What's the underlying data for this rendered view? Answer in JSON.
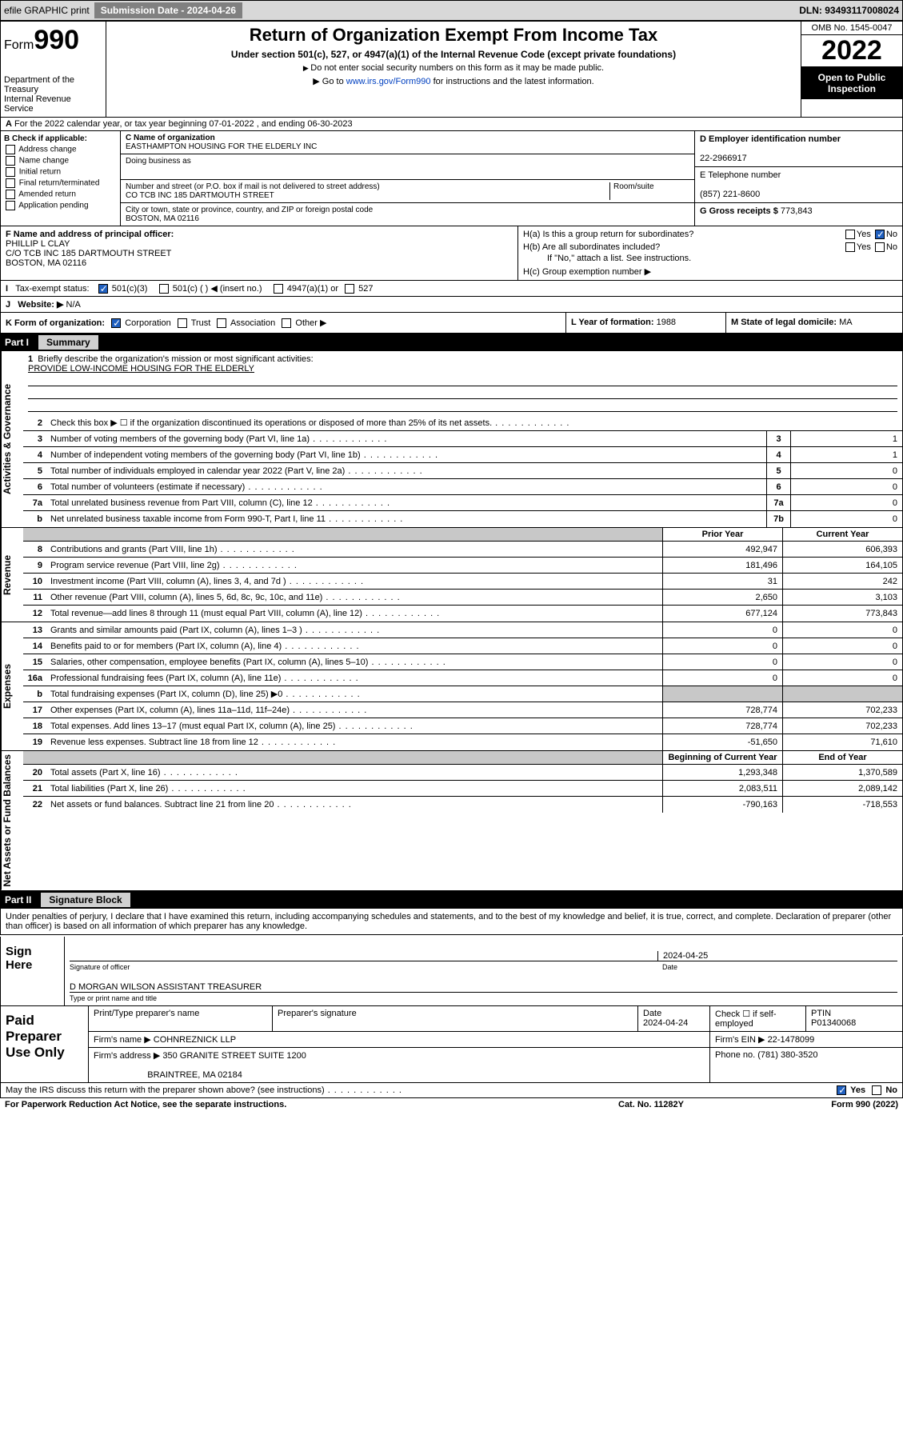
{
  "topbar": {
    "efile": "efile GRAPHIC print",
    "submission_label": "Submission Date - 2024-04-26",
    "dln": "DLN: 93493117008024"
  },
  "header": {
    "form_prefix": "Form",
    "form_num": "990",
    "dept": "Department of the Treasury",
    "irs": "Internal Revenue Service",
    "title": "Return of Organization Exempt From Income Tax",
    "sub1": "Under section 501(c), 527, or 4947(a)(1) of the Internal Revenue Code (except private foundations)",
    "sub2a": "Do not enter social security numbers on this form as it may be made public.",
    "sub2b": "Go to www.irs.gov/Form990 for instructions and the latest information.",
    "link": "www.irs.gov/Form990",
    "omb": "OMB No. 1545-0047",
    "year": "2022",
    "inspect": "Open to Public Inspection"
  },
  "row_a": "For the 2022 calendar year, or tax year beginning 07-01-2022    , and ending 06-30-2023",
  "col_b": {
    "hdr": "B Check if applicable:",
    "items": [
      "Address change",
      "Name change",
      "Initial return",
      "Final return/terminated",
      "Amended return",
      "Application pending"
    ]
  },
  "col_c": {
    "name_lbl": "C Name of organization",
    "name": "EASTHAMPTON HOUSING FOR THE ELDERLY INC",
    "dba_lbl": "Doing business as",
    "addr_lbl": "Number and street (or P.O. box if mail is not delivered to street address)",
    "room_lbl": "Room/suite",
    "addr": "CO TCB INC 185 DARTMOUTH STREET",
    "city_lbl": "City or town, state or province, country, and ZIP or foreign postal code",
    "city": "BOSTON, MA  02116"
  },
  "col_d": {
    "ein_lbl": "D Employer identification number",
    "ein": "22-2966917",
    "tel_lbl": "E Telephone number",
    "tel": "(857) 221-8600",
    "gross_lbl": "G Gross receipts $",
    "gross": "773,843"
  },
  "row_f": {
    "lbl": "F Name and address of principal officer:",
    "name": "PHILLIP L CLAY",
    "addr1": "C/O TCB INC 185 DARTMOUTH STREET",
    "addr2": "BOSTON, MA  02116"
  },
  "row_h": {
    "ha": "H(a)  Is this a group return for subordinates?",
    "hb": "H(b)  Are all subordinates included?",
    "hb_note": "If \"No,\" attach a list. See instructions.",
    "hc": "H(c)  Group exemption number ▶",
    "yes": "Yes",
    "no": "No"
  },
  "row_i": {
    "lbl": "Tax-exempt status:",
    "o1": "501(c)(3)",
    "o2": "501(c) (   ) ◀ (insert no.)",
    "o3": "4947(a)(1) or",
    "o4": "527"
  },
  "row_j": {
    "lbl": "Website: ▶",
    "val": "N/A"
  },
  "row_k": {
    "lbl": "K Form of organization:",
    "opts": [
      "Corporation",
      "Trust",
      "Association",
      "Other ▶"
    ]
  },
  "row_l": {
    "lbl": "L Year of formation:",
    "val": "1988"
  },
  "row_m": {
    "lbl": "M State of legal domicile:",
    "val": "MA"
  },
  "parts": {
    "p1": "Part I",
    "p1_title": "Summary",
    "p2": "Part II",
    "p2_title": "Signature Block"
  },
  "vtabs": {
    "gov": "Activities & Governance",
    "rev": "Revenue",
    "exp": "Expenses",
    "net": "Net Assets or Fund Balances"
  },
  "briefly": {
    "num": "1",
    "txt": "Briefly describe the organization's mission or most significant activities:",
    "val": "PROVIDE LOW-INCOME HOUSING FOR THE ELDERLY"
  },
  "gov_lines": [
    {
      "n": "2",
      "t": "Check this box ▶ ☐ if the organization discontinued its operations or disposed of more than 25% of its net assets."
    },
    {
      "n": "3",
      "t": "Number of voting members of the governing body (Part VI, line 1a)",
      "b": "3",
      "v": "1"
    },
    {
      "n": "4",
      "t": "Number of independent voting members of the governing body (Part VI, line 1b)",
      "b": "4",
      "v": "1"
    },
    {
      "n": "5",
      "t": "Total number of individuals employed in calendar year 2022 (Part V, line 2a)",
      "b": "5",
      "v": "0"
    },
    {
      "n": "6",
      "t": "Total number of volunteers (estimate if necessary)",
      "b": "6",
      "v": "0"
    },
    {
      "n": "7a",
      "t": "Total unrelated business revenue from Part VIII, column (C), line 12",
      "b": "7a",
      "v": "0"
    },
    {
      "n": "b",
      "t": "Net unrelated business taxable income from Form 990-T, Part I, line 11",
      "b": "7b",
      "v": "0"
    }
  ],
  "two_col_hdr": {
    "c1": "Prior Year",
    "c2": "Current Year"
  },
  "rev_lines": [
    {
      "n": "8",
      "t": "Contributions and grants (Part VIII, line 1h)",
      "p": "492,947",
      "c": "606,393"
    },
    {
      "n": "9",
      "t": "Program service revenue (Part VIII, line 2g)",
      "p": "181,496",
      "c": "164,105"
    },
    {
      "n": "10",
      "t": "Investment income (Part VIII, column (A), lines 3, 4, and 7d )",
      "p": "31",
      "c": "242"
    },
    {
      "n": "11",
      "t": "Other revenue (Part VIII, column (A), lines 5, 6d, 8c, 9c, 10c, and 11e)",
      "p": "2,650",
      "c": "3,103"
    },
    {
      "n": "12",
      "t": "Total revenue—add lines 8 through 11 (must equal Part VIII, column (A), line 12)",
      "p": "677,124",
      "c": "773,843"
    }
  ],
  "exp_lines": [
    {
      "n": "13",
      "t": "Grants and similar amounts paid (Part IX, column (A), lines 1–3 )",
      "p": "0",
      "c": "0"
    },
    {
      "n": "14",
      "t": "Benefits paid to or for members (Part IX, column (A), line 4)",
      "p": "0",
      "c": "0"
    },
    {
      "n": "15",
      "t": "Salaries, other compensation, employee benefits (Part IX, column (A), lines 5–10)",
      "p": "0",
      "c": "0"
    },
    {
      "n": "16a",
      "t": "Professional fundraising fees (Part IX, column (A), line 11e)",
      "p": "0",
      "c": "0"
    },
    {
      "n": "b",
      "t": "Total fundraising expenses (Part IX, column (D), line 25) ▶0",
      "grey": true
    },
    {
      "n": "17",
      "t": "Other expenses (Part IX, column (A), lines 11a–11d, 11f–24e)",
      "p": "728,774",
      "c": "702,233"
    },
    {
      "n": "18",
      "t": "Total expenses. Add lines 13–17 (must equal Part IX, column (A), line 25)",
      "p": "728,774",
      "c": "702,233"
    },
    {
      "n": "19",
      "t": "Revenue less expenses. Subtract line 18 from line 12",
      "p": "-51,650",
      "c": "71,610"
    }
  ],
  "net_hdr": {
    "c1": "Beginning of Current Year",
    "c2": "End of Year"
  },
  "net_lines": [
    {
      "n": "20",
      "t": "Total assets (Part X, line 16)",
      "p": "1,293,348",
      "c": "1,370,589"
    },
    {
      "n": "21",
      "t": "Total liabilities (Part X, line 26)",
      "p": "2,083,511",
      "c": "2,089,142"
    },
    {
      "n": "22",
      "t": "Net assets or fund balances. Subtract line 21 from line 20",
      "p": "-790,163",
      "c": "-718,553"
    }
  ],
  "sig": {
    "decl": "Under penalties of perjury, I declare that I have examined this return, including accompanying schedules and statements, and to the best of my knowledge and belief, it is true, correct, and complete. Declaration of preparer (other than officer) is based on all information of which preparer has any knowledge.",
    "sign_here": "Sign Here",
    "sig_lbl": "Signature of officer",
    "date_lbl": "Date",
    "date": "2024-04-25",
    "name": "D MORGAN WILSON  ASSISTANT TREASURER",
    "name_lbl": "Type or print name and title"
  },
  "paid": {
    "title": "Paid Preparer Use Only",
    "h1": "Print/Type preparer's name",
    "h2": "Preparer's signature",
    "h3": "Date",
    "date": "2024-04-24",
    "h4": "Check ☐ if self-employed",
    "h5": "PTIN",
    "ptin": "P01340068",
    "firm_lbl": "Firm's name    ▶",
    "firm": "COHNREZNICK LLP",
    "ein_lbl": "Firm's EIN ▶",
    "ein": "22-1478099",
    "addr_lbl": "Firm's address ▶",
    "addr1": "350 GRANITE STREET SUITE 1200",
    "addr2": "BRAINTREE, MA  02184",
    "phone_lbl": "Phone no.",
    "phone": "(781) 380-3520"
  },
  "foot": {
    "q": "May the IRS discuss this return with the preparer shown above? (see instructions)",
    "yes": "Yes",
    "no": "No"
  },
  "bottom": {
    "b1": "For Paperwork Reduction Act Notice, see the separate instructions.",
    "b2": "Cat. No. 11282Y",
    "b3": "Form 990 (2022)"
  },
  "colors": {
    "topbar_bg": "#d8d8d8",
    "btn_bg": "#808080",
    "link": "#0040c0",
    "black": "#000000",
    "grey": "#c8c8c8",
    "check_on": "#2060c0"
  }
}
